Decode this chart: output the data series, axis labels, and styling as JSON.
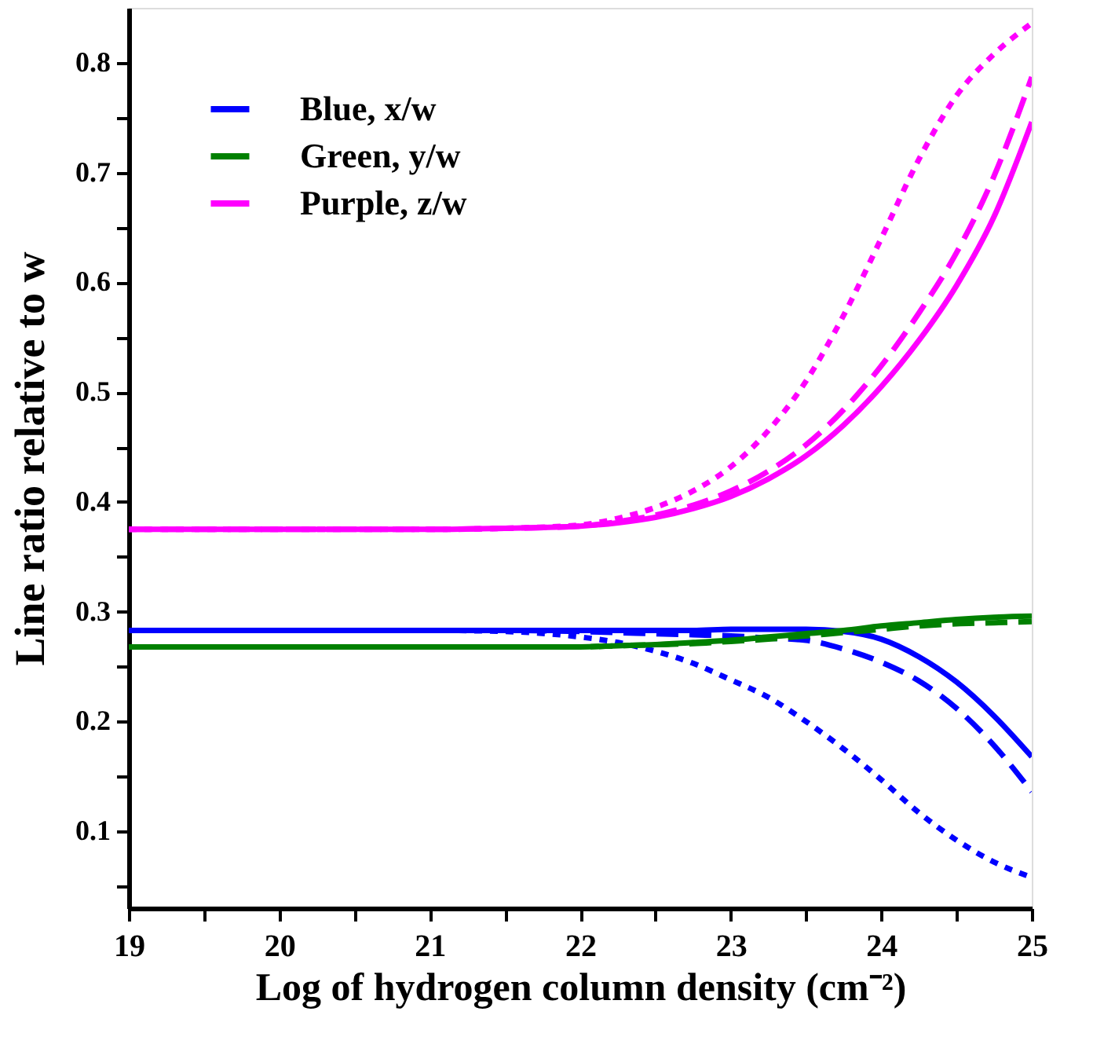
{
  "chart_data": {
    "type": "line",
    "xlabel": "Log of hydrogen column density (cm⁻²)",
    "ylabel": "Line ratio relative to w",
    "x": [
      19,
      20,
      21,
      21.5,
      22,
      22.25,
      22.5,
      22.75,
      23,
      23.25,
      23.5,
      23.75,
      24,
      24.25,
      24.5,
      24.75,
      25
    ],
    "xlim": [
      19,
      25
    ],
    "ylim": [
      0.03,
      0.85
    ],
    "xticks": [
      19,
      {
        "value": 19.5,
        "label": null
      },
      20,
      {
        "value": 20.5,
        "label": null
      },
      21,
      {
        "value": 21.5,
        "label": null
      },
      22,
      {
        "value": 22.5,
        "label": null
      },
      23,
      {
        "value": 23.5,
        "label": null
      },
      24,
      {
        "value": 24.5,
        "label": null
      },
      25
    ],
    "yticks": [
      {
        "value": 0.05,
        "label": null
      },
      0.1,
      {
        "value": 0.15,
        "label": null
      },
      0.2,
      {
        "value": 0.25,
        "label": null
      },
      0.3,
      {
        "value": 0.35,
        "label": null
      },
      0.4,
      {
        "value": 0.45,
        "label": null
      },
      0.5,
      {
        "value": 0.55,
        "label": null
      },
      0.6,
      {
        "value": 0.65,
        "label": null
      },
      0.7,
      {
        "value": 0.75,
        "label": null
      },
      0.8
    ],
    "grid": false,
    "legend": "top left",
    "marker": "none",
    "series": [
      {
        "name": "Blue, x/w",
        "color": "#0000ff",
        "line_style": "solid",
        "values": [
          0.283,
          0.283,
          0.283,
          0.283,
          0.283,
          0.283,
          0.283,
          0.283,
          0.284,
          0.284,
          0.284,
          0.282,
          0.275,
          0.259,
          0.236,
          0.205,
          0.168
        ]
      },
      {
        "color": "#0000ff",
        "line_style": "dashed",
        "values": [
          0.283,
          0.283,
          0.283,
          0.283,
          0.282,
          0.281,
          0.28,
          0.279,
          0.278,
          0.276,
          0.274,
          0.266,
          0.254,
          0.237,
          0.212,
          0.178,
          0.136
        ]
      },
      {
        "color": "#0000ff",
        "line_style": "dotted",
        "values": [
          0.283,
          0.283,
          0.283,
          0.282,
          0.277,
          0.272,
          0.264,
          0.253,
          0.238,
          0.222,
          0.2,
          0.175,
          0.147,
          0.117,
          0.092,
          0.072,
          0.058
        ]
      },
      {
        "name": "Green, y/w",
        "color": "#008000",
        "line_style": "solid",
        "values": [
          0.268,
          0.268,
          0.268,
          0.268,
          0.268,
          0.269,
          0.27,
          0.272,
          0.274,
          0.277,
          0.28,
          0.283,
          0.287,
          0.29,
          0.293,
          0.295,
          0.296
        ]
      },
      {
        "color": "#008000",
        "line_style": "dashed",
        "values": [
          0.268,
          0.268,
          0.268,
          0.268,
          0.268,
          0.269,
          0.27,
          0.271,
          0.273,
          0.275,
          0.278,
          0.281,
          0.284,
          0.287,
          0.289,
          0.29,
          0.291
        ]
      },
      {
        "name": "Purple, z/w",
        "color": "#ff00ff",
        "line_style": "solid",
        "values": [
          0.375,
          0.375,
          0.375,
          0.376,
          0.378,
          0.381,
          0.386,
          0.394,
          0.405,
          0.421,
          0.442,
          0.47,
          0.505,
          0.547,
          0.597,
          0.66,
          0.746
        ]
      },
      {
        "color": "#ff00ff",
        "line_style": "dashed",
        "values": [
          0.375,
          0.375,
          0.375,
          0.376,
          0.378,
          0.382,
          0.388,
          0.397,
          0.41,
          0.428,
          0.452,
          0.484,
          0.524,
          0.572,
          0.627,
          0.697,
          0.787
        ]
      },
      {
        "color": "#ff00ff",
        "line_style": "dotted",
        "values": [
          0.375,
          0.375,
          0.375,
          0.376,
          0.379,
          0.385,
          0.395,
          0.41,
          0.432,
          0.465,
          0.51,
          0.57,
          0.64,
          0.712,
          0.77,
          0.808,
          0.836
        ]
      }
    ]
  }
}
